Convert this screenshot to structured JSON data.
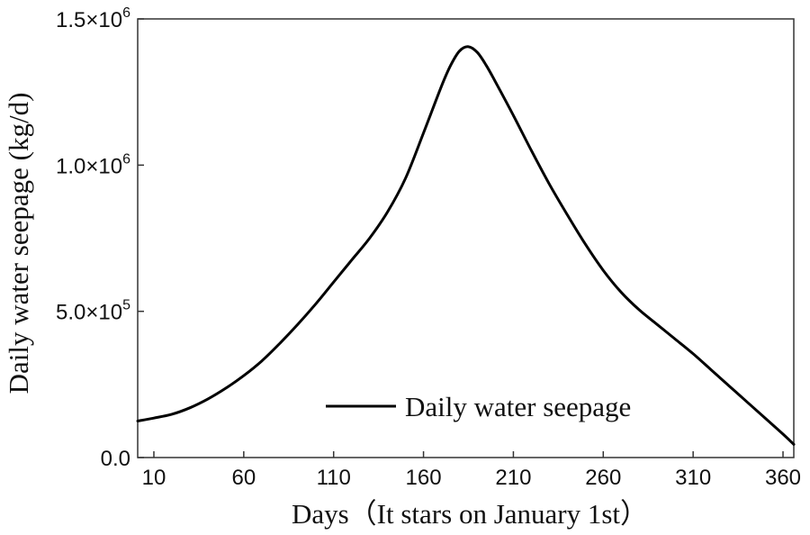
{
  "chart_data": {
    "type": "line",
    "title": "",
    "xlabel": "Days（It stars on January 1st）",
    "ylabel": "Daily water seepage (kg/d)",
    "xlim": [
      1,
      366
    ],
    "ylim": [
      0,
      1500000
    ],
    "xticks": [
      10,
      60,
      110,
      160,
      210,
      260,
      310,
      360
    ],
    "xtick_labels": [
      "10",
      "60",
      "110",
      "160",
      "210",
      "260",
      "310",
      "360"
    ],
    "yticks": [
      0,
      500000,
      1000000,
      1500000
    ],
    "ytick_labels": [
      {
        "base": "0.0",
        "exp": ""
      },
      {
        "base": "5.0×10",
        "exp": "5"
      },
      {
        "base": "1.0×10",
        "exp": "6"
      },
      {
        "base": "1.5×10",
        "exp": "6"
      }
    ],
    "legend": {
      "position": "lower-center",
      "entries": [
        "Daily water seepage"
      ]
    },
    "grid": false,
    "series": [
      {
        "name": "Daily water seepage",
        "color": "#000000",
        "x": [
          1,
          10,
          20,
          30,
          40,
          50,
          60,
          70,
          80,
          90,
          100,
          110,
          120,
          130,
          140,
          150,
          160,
          170,
          175,
          180,
          185,
          190,
          195,
          200,
          210,
          220,
          230,
          240,
          250,
          260,
          270,
          280,
          290,
          300,
          310,
          320,
          330,
          340,
          350,
          360,
          366
        ],
        "y": [
          125000,
          135000,
          148000,
          170000,
          200000,
          237000,
          280000,
          330000,
          390000,
          455000,
          525000,
          600000,
          675000,
          750000,
          840000,
          955000,
          1110000,
          1270000,
          1340000,
          1390000,
          1405000,
          1385000,
          1340000,
          1285000,
          1170000,
          1050000,
          935000,
          830000,
          730000,
          640000,
          565000,
          505000,
          455000,
          405000,
          355000,
          300000,
          245000,
          190000,
          135000,
          80000,
          45000
        ]
      }
    ]
  }
}
